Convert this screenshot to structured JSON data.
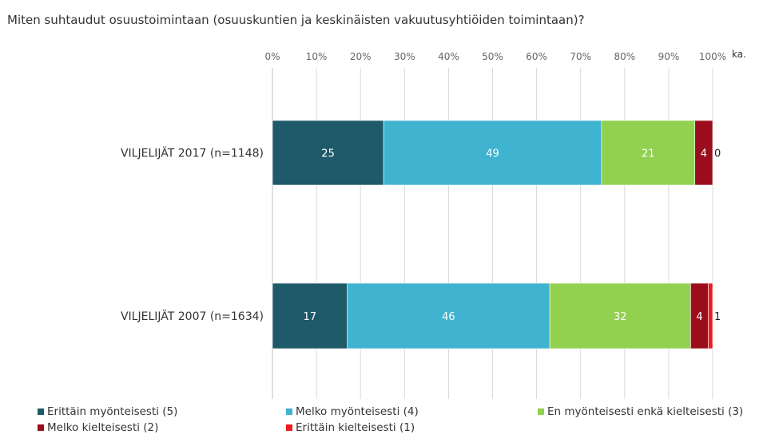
{
  "chart_data": {
    "type": "bar",
    "orientation": "horizontal",
    "stacked": "percent",
    "title": "Miten suhtaudut osuustoimintaan (osuuskuntien ja keskinäisten vakuutusyhtiöiden toimintaan)?",
    "xlim": [
      0,
      100
    ],
    "x_ticks": [
      "0%",
      "10%",
      "20%",
      "30%",
      "40%",
      "50%",
      "60%",
      "70%",
      "80%",
      "90%",
      "100%"
    ],
    "extra_axis_label": "ka.",
    "grid": true,
    "legend_position": "bottom",
    "categories": [
      "VILJELIJÄT 2017 (n=1148)",
      "VILJELIJÄT 2007 (n=1634)"
    ],
    "series": [
      {
        "name": "Erittäin myönteisesti (5)",
        "color": "#1e5a69",
        "values": [
          25,
          17
        ]
      },
      {
        "name": "Melko myönteisesti (4)",
        "color": "#3fb3cf",
        "values": [
          49,
          46
        ]
      },
      {
        "name": "En myönteisesti enkä kielteisesti (3)",
        "color": "#92d050",
        "values": [
          21,
          32
        ]
      },
      {
        "name": "Melko kielteisesti (2)",
        "color": "#9b0d1c",
        "values": [
          4,
          4
        ]
      },
      {
        "name": "Erittäin kielteisesti (1)",
        "color": "#ee1c1c",
        "values": [
          0,
          1
        ]
      }
    ],
    "data_labels": [
      [
        "25",
        "49",
        "21",
        "4",
        "0"
      ],
      [
        "17",
        "46",
        "32",
        "4",
        "1"
      ]
    ]
  }
}
